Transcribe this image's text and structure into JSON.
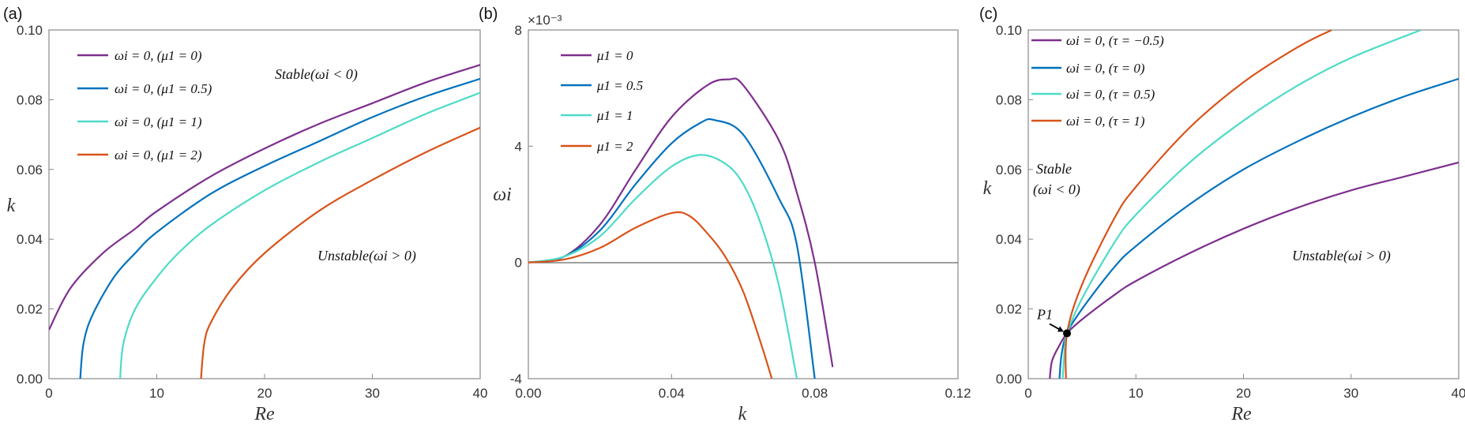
{
  "colors": {
    "purple": "#7E2F8E",
    "blue": "#0072BD",
    "cyan": "#4DDBC8",
    "orange": "#D95319"
  },
  "chart_data": [
    {
      "panel_label": "(a)",
      "type": "line",
      "xlabel": "Re",
      "ylabel": "k",
      "xlim": [
        0,
        40
      ],
      "ylim": [
        0,
        0.1
      ],
      "xticks": [
        "0",
        "10",
        "20",
        "30",
        "40"
      ],
      "yticks": [
        "0.00",
        "0.02",
        "0.04",
        "0.06",
        "0.08",
        "0.10"
      ],
      "annotations": [
        {
          "text": "Stable(ωi < 0)"
        },
        {
          "text": "Unstable(ωi > 0)"
        }
      ],
      "series": [
        {
          "name": "ωi = 0, (μ1 = 0)",
          "color": "#7E2F8E",
          "x": [
            0,
            2,
            5,
            8,
            10,
            15,
            20,
            25,
            30,
            35,
            40
          ],
          "y": [
            0.014,
            0.026,
            0.036,
            0.043,
            0.048,
            0.058,
            0.066,
            0.073,
            0.079,
            0.085,
            0.09
          ]
        },
        {
          "name": "ωi = 0, (μ1 = 0.5)",
          "color": "#0072BD",
          "x": [
            2.9,
            3.2,
            4,
            6,
            8,
            10,
            15,
            20,
            25,
            30,
            35,
            40
          ],
          "y": [
            0,
            0.01,
            0.018,
            0.029,
            0.036,
            0.042,
            0.053,
            0.061,
            0.068,
            0.075,
            0.081,
            0.086
          ]
        },
        {
          "name": "ωi = 0, (μ1 = 1)",
          "color": "#4DDBC8",
          "x": [
            6.6,
            6.9,
            8,
            10,
            12,
            15,
            20,
            25,
            30,
            35,
            40
          ],
          "y": [
            0,
            0.01,
            0.02,
            0.029,
            0.036,
            0.044,
            0.054,
            0.062,
            0.069,
            0.076,
            0.082
          ]
        },
        {
          "name": "ωi = 0, (μ1 = 2)",
          "color": "#D95319",
          "x": [
            14.1,
            14.4,
            15,
            17,
            20,
            25,
            30,
            35,
            40
          ],
          "y": [
            0,
            0.01,
            0.016,
            0.026,
            0.036,
            0.048,
            0.057,
            0.065,
            0.072
          ]
        }
      ]
    },
    {
      "panel_label": "(b)",
      "type": "line",
      "xlabel": "k",
      "ylabel": "ωi",
      "exponent_label": "×10⁻³",
      "xlim": [
        0,
        0.12
      ],
      "ylim": [
        -4,
        8
      ],
      "xticks": [
        "0.00",
        "0.04",
        "0.08",
        "0.12"
      ],
      "yticks": [
        "-4",
        "0",
        "4",
        "8"
      ],
      "series": [
        {
          "name": "μ1 = 0",
          "color": "#7E2F8E",
          "x": [
            0,
            0.01,
            0.02,
            0.03,
            0.04,
            0.05,
            0.056,
            0.06,
            0.07,
            0.075,
            0.08,
            0.085
          ],
          "y": [
            0,
            0.2,
            1.3,
            3.2,
            5.0,
            6.1,
            6.3,
            6.1,
            4.2,
            2.4,
            0,
            -3.6
          ]
        },
        {
          "name": "μ1 = 0.5",
          "color": "#0072BD",
          "x": [
            0,
            0.01,
            0.02,
            0.03,
            0.04,
            0.048,
            0.052,
            0.06,
            0.07,
            0.075,
            0.08
          ],
          "y": [
            0,
            0.2,
            1.1,
            2.7,
            4.1,
            4.8,
            4.9,
            4.4,
            2.2,
            0.6,
            -4
          ]
        },
        {
          "name": "μ1 = 1",
          "color": "#4DDBC8",
          "x": [
            0,
            0.01,
            0.02,
            0.03,
            0.04,
            0.048,
            0.055,
            0.06,
            0.065,
            0.07,
            0.075
          ],
          "y": [
            0,
            0.2,
            0.9,
            2.2,
            3.3,
            3.7,
            3.4,
            2.7,
            1.3,
            -0.8,
            -4
          ]
        },
        {
          "name": "μ1 = 2",
          "color": "#D95319",
          "x": [
            0,
            0.01,
            0.02,
            0.03,
            0.04,
            0.045,
            0.05,
            0.055,
            0.06,
            0.065,
            0.068
          ],
          "y": [
            0,
            0.1,
            0.5,
            1.2,
            1.7,
            1.6,
            1.0,
            0.2,
            -1.0,
            -2.8,
            -4
          ]
        }
      ]
    },
    {
      "panel_label": "(c)",
      "type": "line",
      "xlabel": "Re",
      "ylabel": "k",
      "xlim": [
        0,
        40
      ],
      "ylim": [
        0,
        0.1
      ],
      "xticks": [
        "0",
        "10",
        "20",
        "30",
        "40"
      ],
      "yticks": [
        "0.00",
        "0.02",
        "0.04",
        "0.06",
        "0.08",
        "0.10"
      ],
      "annotations": [
        {
          "text": "Stable"
        },
        {
          "text": "(ωi < 0)"
        },
        {
          "text": "Unstable(ωi > 0)"
        },
        {
          "text": "P1",
          "x": 3.6,
          "y": 0.013
        }
      ],
      "series": [
        {
          "name": "ωi = 0, (τ = −0.5)",
          "color": "#7E2F8E",
          "x": [
            2,
            2.2,
            2.8,
            3.6,
            5,
            8,
            10,
            15,
            20,
            25,
            30,
            35,
            40
          ],
          "y": [
            0,
            0.005,
            0.009,
            0.013,
            0.017,
            0.024,
            0.028,
            0.036,
            0.043,
            0.049,
            0.054,
            0.058,
            0.062
          ]
        },
        {
          "name": "ωi = 0, (τ = 0)",
          "color": "#0072BD",
          "x": [
            2.9,
            3.1,
            3.6,
            5,
            8,
            10,
            15,
            20,
            25,
            30,
            35,
            40
          ],
          "y": [
            0,
            0.007,
            0.013,
            0.02,
            0.032,
            0.038,
            0.05,
            0.06,
            0.068,
            0.075,
            0.081,
            0.086
          ]
        },
        {
          "name": "ωi = 0, (τ = 0.5)",
          "color": "#4DDBC8",
          "x": [
            3.2,
            3.4,
            3.6,
            5,
            8,
            10,
            15,
            20,
            25,
            30,
            36.5
          ],
          "y": [
            0,
            0.009,
            0.013,
            0.023,
            0.039,
            0.047,
            0.062,
            0.074,
            0.084,
            0.092,
            0.1
          ]
        },
        {
          "name": "ωi = 0, (τ = 1)",
          "color": "#D95319",
          "x": [
            3.5,
            3.6,
            5,
            8,
            10,
            15,
            20,
            25,
            28.2
          ],
          "y": [
            0,
            0.013,
            0.027,
            0.046,
            0.055,
            0.072,
            0.085,
            0.095,
            0.1
          ]
        }
      ]
    }
  ]
}
